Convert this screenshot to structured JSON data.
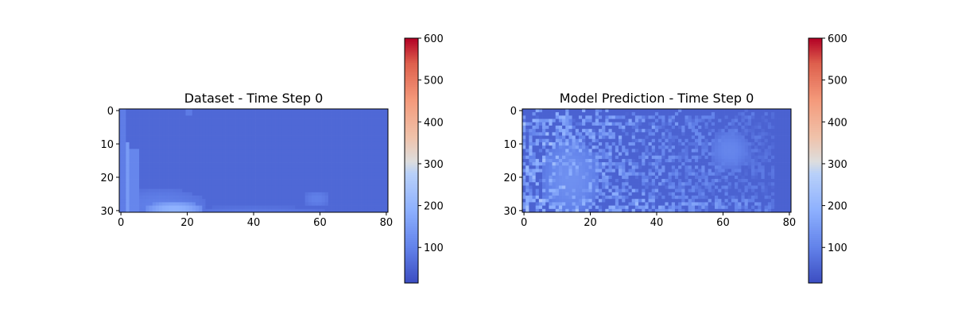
{
  "chart_data": [
    {
      "type": "heatmap",
      "title": "Dataset - Time Step 0",
      "xlabel": "",
      "ylabel": "",
      "xlim": [
        -0.5,
        80.5
      ],
      "ylim": [
        30.5,
        -0.5
      ],
      "xticks": [
        0,
        20,
        40,
        60,
        80
      ],
      "yticks": [
        0,
        10,
        20,
        30
      ],
      "grid_shape": [
        31,
        81
      ],
      "colormap": "coolwarm",
      "colorbar": {
        "ticks": [
          100,
          200,
          300,
          400,
          500,
          600
        ],
        "range": [
          15,
          600
        ]
      },
      "base_value": 60,
      "features": [
        {
          "kind": "column",
          "cols": [
            0,
            1
          ],
          "rows": [
            0,
            30
          ],
          "value": 95
        },
        {
          "kind": "column",
          "cols": [
            2,
            2
          ],
          "rows": [
            10,
            30
          ],
          "value": 150
        },
        {
          "kind": "column",
          "cols": [
            3,
            5
          ],
          "rows": [
            12,
            30
          ],
          "value": 110
        },
        {
          "kind": "blob",
          "cx": 16,
          "cy": 29.5,
          "rx": 9,
          "ry": 2.2,
          "value": 200
        },
        {
          "kind": "blob",
          "cx": 12,
          "cy": 28.5,
          "rx": 14,
          "ry": 5,
          "value": 100
        },
        {
          "kind": "blob",
          "cx": 59,
          "cy": 26.5,
          "rx": 4,
          "ry": 2.5,
          "value": 100
        },
        {
          "kind": "blob",
          "cx": 40,
          "cy": 30,
          "rx": 22,
          "ry": 1.2,
          "value": 85
        },
        {
          "kind": "blob",
          "cx": 20.5,
          "cy": 0.5,
          "rx": 0.8,
          "ry": 0.8,
          "value": 120
        }
      ]
    },
    {
      "type": "heatmap",
      "title": "Model Prediction - Time Step 0",
      "xlabel": "",
      "ylabel": "",
      "xlim": [
        -0.5,
        80.5
      ],
      "ylim": [
        30.5,
        -0.5
      ],
      "xticks": [
        0,
        20,
        40,
        60,
        80
      ],
      "yticks": [
        0,
        10,
        20,
        30
      ],
      "grid_shape": [
        31,
        81
      ],
      "colormap": "coolwarm",
      "colorbar": {
        "ticks": [
          100,
          200,
          300,
          400,
          500,
          600
        ],
        "range": [
          15,
          600
        ]
      },
      "base_value": 50,
      "noise": {
        "seed": 7,
        "amplitude": 90,
        "left_bias": 80,
        "bottom_bias": 50,
        "density": 0.55
      },
      "features": [
        {
          "kind": "column",
          "cols": [
            13,
            13
          ],
          "rows": [
            0,
            4
          ],
          "value": 140
        },
        {
          "kind": "blob",
          "cx": 14,
          "cy": 20,
          "rx": 9,
          "ry": 12,
          "value": 130
        },
        {
          "kind": "blob",
          "cx": 62,
          "cy": 12,
          "rx": 6,
          "ry": 6,
          "value": 110
        }
      ]
    }
  ]
}
